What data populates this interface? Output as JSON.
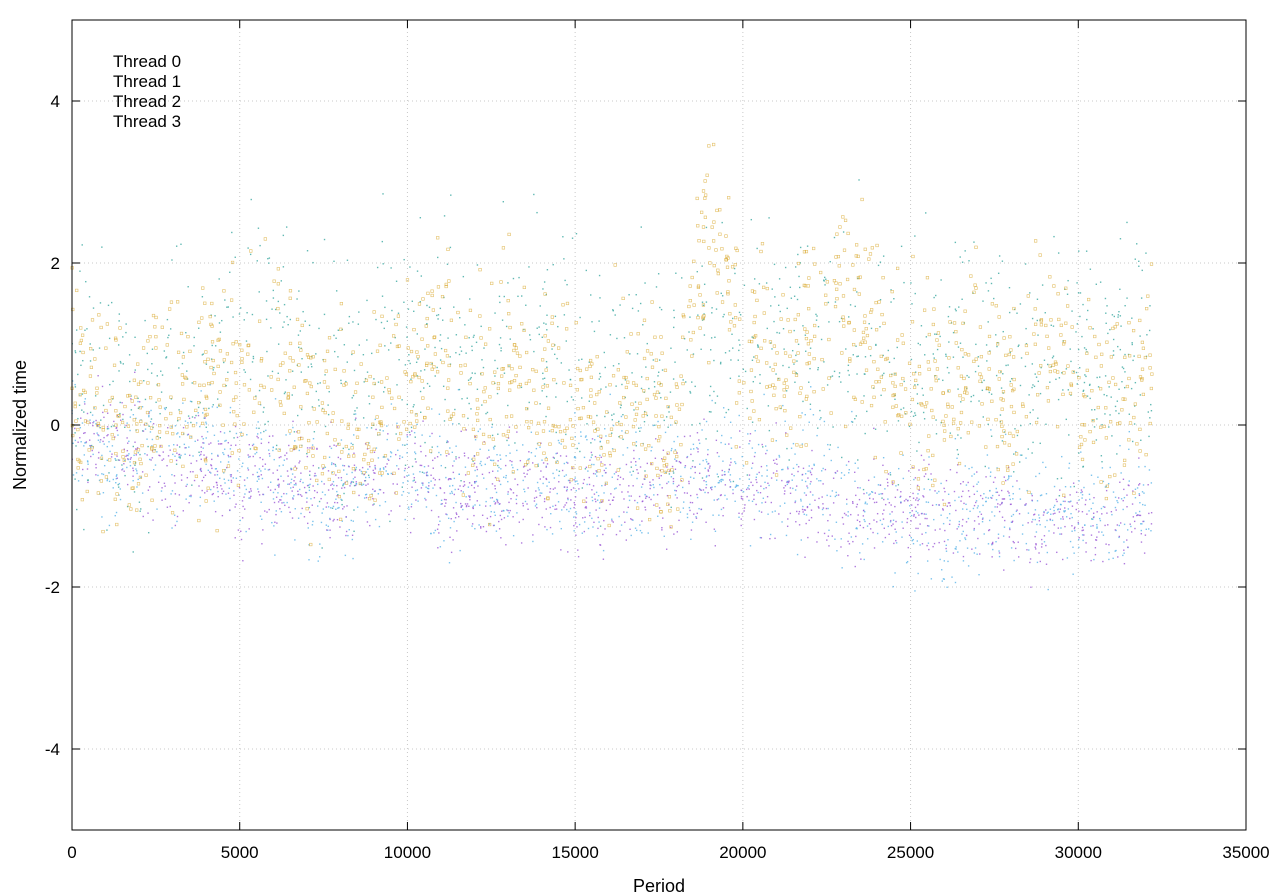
{
  "chart_data": {
    "type": "scatter",
    "title": "",
    "xlabel": "Period",
    "ylabel": "Normalized time",
    "xlim": [
      0,
      35000
    ],
    "ylim": [
      -5,
      5
    ],
    "x_ticks": [
      0,
      5000,
      10000,
      15000,
      20000,
      25000,
      30000,
      35000
    ],
    "y_ticks": [
      -4,
      -2,
      0,
      2,
      4
    ],
    "x_tick_labels": [
      "0",
      "5000",
      "10000",
      "15000",
      "20000",
      "25000",
      "30000",
      "35000"
    ],
    "y_tick_labels": [
      "-4",
      "-2",
      "0",
      "2",
      "4"
    ],
    "grid": true,
    "legend_position": "top-left",
    "x_data_extent": [
      0,
      32200
    ],
    "series": [
      {
        "name": "Thread 0",
        "color": "#9b59d6",
        "marker": "dot",
        "trend": [
          [
            0,
            -0.1
          ],
          [
            1000,
            -0.2
          ],
          [
            2000,
            -0.3
          ],
          [
            3000,
            -0.6
          ],
          [
            4000,
            -0.5
          ],
          [
            5000,
            -0.8
          ],
          [
            6000,
            -0.7
          ],
          [
            7000,
            -0.6
          ],
          [
            8000,
            -0.8
          ],
          [
            9000,
            -0.6
          ],
          [
            10000,
            -0.6
          ],
          [
            11000,
            -0.8
          ],
          [
            12000,
            -0.7
          ],
          [
            13000,
            -0.8
          ],
          [
            14000,
            -0.7
          ],
          [
            15000,
            -0.9
          ],
          [
            16000,
            -0.9
          ],
          [
            17000,
            -0.8
          ],
          [
            18000,
            -0.7
          ],
          [
            19000,
            -0.6
          ],
          [
            20000,
            -0.8
          ],
          [
            21000,
            -0.7
          ],
          [
            22000,
            -0.9
          ],
          [
            23000,
            -1.2
          ],
          [
            24000,
            -1.0
          ],
          [
            25000,
            -1.0
          ],
          [
            26000,
            -1.1
          ],
          [
            27000,
            -1.0
          ],
          [
            28000,
            -1.2
          ],
          [
            29000,
            -1.3
          ],
          [
            30000,
            -1.2
          ],
          [
            31000,
            -1.2
          ],
          [
            32200,
            -1.1
          ]
        ]
      },
      {
        "name": "Thread 1",
        "color": "#3aa8a0",
        "marker": "dot",
        "trend": [
          [
            0,
            0.6
          ],
          [
            1000,
            0.3
          ],
          [
            2000,
            0.1
          ],
          [
            3000,
            0.6
          ],
          [
            4000,
            0.8
          ],
          [
            5000,
            0.8
          ],
          [
            6000,
            1.0
          ],
          [
            7000,
            0.6
          ],
          [
            8000,
            0.3
          ],
          [
            9000,
            0.6
          ],
          [
            10000,
            0.8
          ],
          [
            11000,
            0.9
          ],
          [
            12000,
            0.7
          ],
          [
            13000,
            0.9
          ],
          [
            14000,
            1.0
          ],
          [
            15000,
            0.6
          ],
          [
            16000,
            0.5
          ],
          [
            17000,
            0.6
          ],
          [
            18000,
            0.5
          ],
          [
            19000,
            0.9
          ],
          [
            20000,
            1.0
          ],
          [
            21000,
            1.0
          ],
          [
            22000,
            1.1
          ],
          [
            23000,
            0.9
          ],
          [
            24000,
            1.0
          ],
          [
            25000,
            0.9
          ],
          [
            26000,
            0.8
          ],
          [
            27000,
            1.2
          ],
          [
            28000,
            0.8
          ],
          [
            29000,
            0.9
          ],
          [
            30000,
            0.8
          ],
          [
            31000,
            0.7
          ],
          [
            32200,
            0.9
          ]
        ]
      },
      {
        "name": "Thread 2",
        "color": "#5ab4e8",
        "marker": "dot",
        "trend": [
          [
            0,
            0.2
          ],
          [
            1000,
            -0.6
          ],
          [
            2000,
            -0.3
          ],
          [
            3000,
            -0.4
          ],
          [
            4000,
            -0.3
          ],
          [
            5000,
            -0.6
          ],
          [
            6000,
            -0.6
          ],
          [
            7000,
            -0.9
          ],
          [
            8000,
            -0.8
          ],
          [
            9000,
            -0.6
          ],
          [
            10000,
            -0.5
          ],
          [
            11000,
            -0.7
          ],
          [
            12000,
            -0.7
          ],
          [
            13000,
            -0.6
          ],
          [
            14000,
            -0.6
          ],
          [
            15000,
            -0.8
          ],
          [
            16000,
            -0.7
          ],
          [
            17000,
            -0.6
          ],
          [
            18000,
            -0.6
          ],
          [
            19000,
            -0.5
          ],
          [
            20000,
            -0.6
          ],
          [
            21000,
            -0.7
          ],
          [
            22000,
            -0.6
          ],
          [
            23000,
            -0.9
          ],
          [
            24000,
            -1.0
          ],
          [
            25000,
            -1.2
          ],
          [
            26000,
            -1.3
          ],
          [
            27000,
            -1.0
          ],
          [
            28000,
            -1.0
          ],
          [
            29000,
            -1.1
          ],
          [
            30000,
            -1.0
          ],
          [
            31000,
            -1.0
          ],
          [
            32200,
            -0.9
          ]
        ]
      },
      {
        "name": "Thread 3",
        "color": "#d9a932",
        "marker": "square",
        "trend": [
          [
            0,
            0.8
          ],
          [
            1000,
            0.0
          ],
          [
            2000,
            -0.1
          ],
          [
            3000,
            0.5
          ],
          [
            4000,
            0.3
          ],
          [
            5000,
            0.6
          ],
          [
            6000,
            0.9
          ],
          [
            7000,
            0.2
          ],
          [
            8000,
            -0.1
          ],
          [
            9000,
            0.1
          ],
          [
            10000,
            0.6
          ],
          [
            11000,
            1.0
          ],
          [
            12000,
            0.3
          ],
          [
            13000,
            0.5
          ],
          [
            14000,
            0.5
          ],
          [
            15000,
            0.4
          ],
          [
            16000,
            0.2
          ],
          [
            17000,
            0.3
          ],
          [
            18000,
            0.0
          ],
          [
            19000,
            2.5
          ],
          [
            20000,
            1.0
          ],
          [
            21000,
            0.6
          ],
          [
            22000,
            1.3
          ],
          [
            23000,
            1.6
          ],
          [
            24000,
            1.0
          ],
          [
            25000,
            0.6
          ],
          [
            26000,
            0.2
          ],
          [
            27000,
            1.0
          ],
          [
            28000,
            0.2
          ],
          [
            29000,
            1.2
          ],
          [
            30000,
            0.3
          ],
          [
            31000,
            0.2
          ],
          [
            32200,
            0.6
          ]
        ]
      }
    ]
  }
}
